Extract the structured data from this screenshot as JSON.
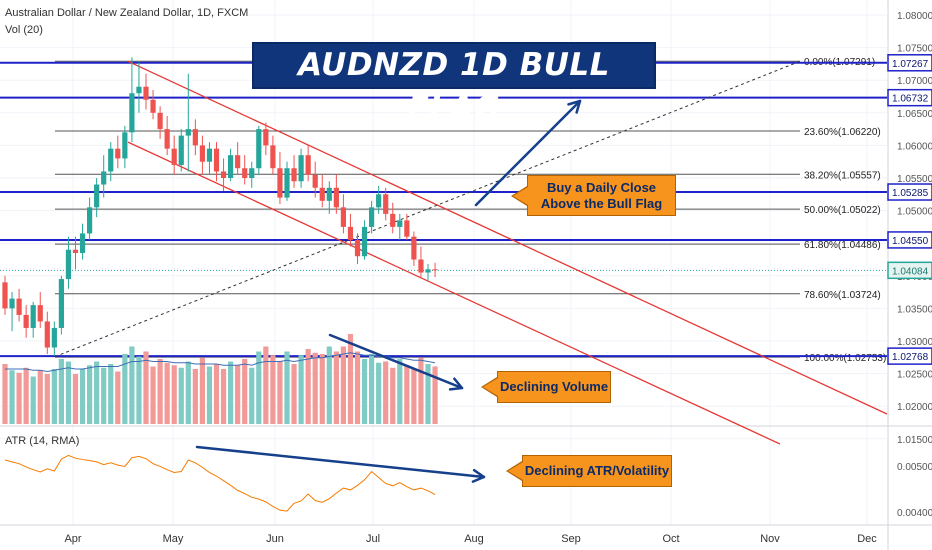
{
  "header": {
    "symbol_line": "Australian Dollar / New Zealand Dollar, 1D, FXCM",
    "vol_label": "Vol (20)",
    "atr_label": "ATR (14, RMA)"
  },
  "banner": {
    "title": "AUDNZD 1D BULL FLAG"
  },
  "callouts": {
    "buy": "Buy a Daily Close Above the Bull Flag",
    "volume": "Declining Volume",
    "atr": "Declining ATR/Volatility"
  },
  "colors": {
    "up": "#26a69a",
    "down": "#ef5350",
    "vol_up": "#80cbc4",
    "vol_down": "#f19a98",
    "channel": "#e53935",
    "level_line": "#1e22c8",
    "fib_line": "#555555",
    "arrow": "#163f8c",
    "atr_line": "#f57c00",
    "last_price_line": "#26a69a"
  },
  "chart_data": [
    {
      "type": "candlestick",
      "title": "Australian Dollar / New Zealand Dollar, 1D, FXCM",
      "x_tick_labels": [
        "Apr",
        "May",
        "Jun",
        "Jul",
        "Aug",
        "Sep",
        "Oct",
        "Nov",
        "Dec"
      ],
      "y_tick_labels": [
        "1.08000",
        "1.07500",
        "1.07000",
        "1.06500",
        "1.06000",
        "1.05500",
        "1.05000",
        "1.04500",
        "1.04000",
        "1.03500",
        "1.03000",
        "1.02500",
        "1.02000",
        "1.01500"
      ],
      "ylim": [
        1.0132,
        1.0815
      ],
      "price_tags": [
        "1.07267",
        "1.06732",
        "1.05285",
        "1.04550",
        "1.04084",
        "1.02768"
      ],
      "horizontal_levels": [
        1.07267,
        1.06732,
        1.05285,
        1.0455,
        1.02768
      ],
      "last_price": 1.04084,
      "fib_levels": [
        {
          "label": "0.00%(1.07291)",
          "value": 1.07291
        },
        {
          "label": "23.60%(1.06220)",
          "value": 1.0622
        },
        {
          "label": "38.20%(1.05557)",
          "value": 1.05557
        },
        {
          "label": "50.00%(1.05022)",
          "value": 1.05022
        },
        {
          "label": "61.80%(1.04486)",
          "value": 1.04486
        },
        {
          "label": "78.60%(1.03724)",
          "value": 1.03724
        },
        {
          "label": "100.00%(1.02753)",
          "value": 1.02753
        }
      ],
      "series": [
        {
          "open": 1.039,
          "high": 1.04,
          "low": 1.034,
          "close": 1.035
        },
        {
          "open": 1.035,
          "high": 1.0375,
          "low": 1.0315,
          "close": 1.0365
        },
        {
          "open": 1.0365,
          "high": 1.038,
          "low": 1.033,
          "close": 1.034
        },
        {
          "open": 1.034,
          "high": 1.0355,
          "low": 1.0305,
          "close": 1.032
        },
        {
          "open": 1.032,
          "high": 1.036,
          "low": 1.0305,
          "close": 1.0355
        },
        {
          "open": 1.0355,
          "high": 1.0375,
          "low": 1.032,
          "close": 1.033
        },
        {
          "open": 1.033,
          "high": 1.0345,
          "low": 1.028,
          "close": 1.029
        },
        {
          "open": 1.029,
          "high": 1.033,
          "low": 1.0277,
          "close": 1.032
        },
        {
          "open": 1.032,
          "high": 1.04,
          "low": 1.031,
          "close": 1.0395
        },
        {
          "open": 1.0395,
          "high": 1.046,
          "low": 1.038,
          "close": 1.044
        },
        {
          "open": 1.044,
          "high": 1.046,
          "low": 1.041,
          "close": 1.0435
        },
        {
          "open": 1.0435,
          "high": 1.048,
          "low": 1.0425,
          "close": 1.0465
        },
        {
          "open": 1.0465,
          "high": 1.052,
          "low": 1.0455,
          "close": 1.0505
        },
        {
          "open": 1.0505,
          "high": 1.055,
          "low": 1.049,
          "close": 1.054
        },
        {
          "open": 1.054,
          "high": 1.0585,
          "low": 1.052,
          "close": 1.056
        },
        {
          "open": 1.056,
          "high": 1.0605,
          "low": 1.0545,
          "close": 1.0595
        },
        {
          "open": 1.0595,
          "high": 1.0615,
          "low": 1.0565,
          "close": 1.058
        },
        {
          "open": 1.058,
          "high": 1.063,
          "low": 1.0565,
          "close": 1.062
        },
        {
          "open": 1.062,
          "high": 1.0735,
          "low": 1.0605,
          "close": 1.068
        },
        {
          "open": 1.068,
          "high": 1.0729,
          "low": 1.065,
          "close": 1.069
        },
        {
          "open": 1.069,
          "high": 1.071,
          "low": 1.0655,
          "close": 1.067
        },
        {
          "open": 1.067,
          "high": 1.0685,
          "low": 1.064,
          "close": 1.065
        },
        {
          "open": 1.065,
          "high": 1.066,
          "low": 1.061,
          "close": 1.0625
        },
        {
          "open": 1.0625,
          "high": 1.0645,
          "low": 1.0585,
          "close": 1.0595
        },
        {
          "open": 1.0595,
          "high": 1.0615,
          "low": 1.0555,
          "close": 1.057
        },
        {
          "open": 1.057,
          "high": 1.0625,
          "low": 1.056,
          "close": 1.0615
        },
        {
          "open": 1.0615,
          "high": 1.071,
          "low": 1.056,
          "close": 1.0625
        },
        {
          "open": 1.0625,
          "high": 1.064,
          "low": 1.0585,
          "close": 1.06
        },
        {
          "open": 1.06,
          "high": 1.0615,
          "low": 1.0555,
          "close": 1.0575
        },
        {
          "open": 1.0575,
          "high": 1.0605,
          "low": 1.0555,
          "close": 1.0595
        },
        {
          "open": 1.0595,
          "high": 1.0605,
          "low": 1.0545,
          "close": 1.056
        },
        {
          "open": 1.056,
          "high": 1.058,
          "low": 1.053,
          "close": 1.055
        },
        {
          "open": 1.055,
          "high": 1.0595,
          "low": 1.0545,
          "close": 1.0585
        },
        {
          "open": 1.0585,
          "high": 1.0605,
          "low": 1.0555,
          "close": 1.0565
        },
        {
          "open": 1.0565,
          "high": 1.0585,
          "low": 1.054,
          "close": 1.055
        },
        {
          "open": 1.055,
          "high": 1.0575,
          "low": 1.0535,
          "close": 1.0565
        },
        {
          "open": 1.0565,
          "high": 1.063,
          "low": 1.0555,
          "close": 1.0625
        },
        {
          "open": 1.0625,
          "high": 1.0635,
          "low": 1.0585,
          "close": 1.06
        },
        {
          "open": 1.06,
          "high": 1.0615,
          "low": 1.0555,
          "close": 1.0565
        },
        {
          "open": 1.0565,
          "high": 1.059,
          "low": 1.051,
          "close": 1.052
        },
        {
          "open": 1.052,
          "high": 1.0575,
          "low": 1.0515,
          "close": 1.0565
        },
        {
          "open": 1.0565,
          "high": 1.0585,
          "low": 1.0535,
          "close": 1.0545
        },
        {
          "open": 1.0545,
          "high": 1.0595,
          "low": 1.0535,
          "close": 1.0585
        },
        {
          "open": 1.0585,
          "high": 1.06,
          "low": 1.0545,
          "close": 1.0555
        },
        {
          "open": 1.0555,
          "high": 1.0575,
          "low": 1.052,
          "close": 1.0535
        },
        {
          "open": 1.0535,
          "high": 1.0555,
          "low": 1.0505,
          "close": 1.0515
        },
        {
          "open": 1.0515,
          "high": 1.0545,
          "low": 1.0495,
          "close": 1.0535
        },
        {
          "open": 1.0535,
          "high": 1.0555,
          "low": 1.0495,
          "close": 1.0505
        },
        {
          "open": 1.0505,
          "high": 1.0525,
          "low": 1.0465,
          "close": 1.0475
        },
        {
          "open": 1.0475,
          "high": 1.0495,
          "low": 1.0445,
          "close": 1.0455
        },
        {
          "open": 1.0455,
          "high": 1.0465,
          "low": 1.0418,
          "close": 1.043
        },
        {
          "open": 1.043,
          "high": 1.0485,
          "low": 1.0425,
          "close": 1.0475
        },
        {
          "open": 1.0475,
          "high": 1.0515,
          "low": 1.0465,
          "close": 1.0505
        },
        {
          "open": 1.0505,
          "high": 1.0538,
          "low": 1.0495,
          "close": 1.0525
        },
        {
          "open": 1.0525,
          "high": 1.0535,
          "low": 1.0485,
          "close": 1.0495
        },
        {
          "open": 1.0495,
          "high": 1.0512,
          "low": 1.0465,
          "close": 1.0475
        },
        {
          "open": 1.0475,
          "high": 1.0495,
          "low": 1.0455,
          "close": 1.0485
        },
        {
          "open": 1.0485,
          "high": 1.0495,
          "low": 1.0455,
          "close": 1.046
        },
        {
          "open": 1.046,
          "high": 1.0468,
          "low": 1.0415,
          "close": 1.0425
        },
        {
          "open": 1.0425,
          "high": 1.0445,
          "low": 1.0398,
          "close": 1.0405
        },
        {
          "open": 1.0405,
          "high": 1.0418,
          "low": 1.0392,
          "close": 1.041
        },
        {
          "open": 1.041,
          "high": 1.042,
          "low": 1.0398,
          "close": 1.04084
        }
      ],
      "annotations": [
        "AUDNZD 1D BULL FLAG",
        "Buy a Daily Close Above the Bull Flag"
      ]
    },
    {
      "type": "bar",
      "title": "Vol (20)",
      "values": [
        48,
        43,
        41,
        45,
        38,
        43,
        40,
        44,
        52,
        50,
        40,
        44,
        47,
        50,
        45,
        48,
        42,
        56,
        62,
        54,
        58,
        46,
        52,
        49,
        47,
        45,
        50,
        44,
        53,
        46,
        48,
        44,
        50,
        47,
        52,
        45,
        58,
        62,
        55,
        50,
        58,
        48,
        55,
        60,
        57,
        56,
        62,
        58,
        62,
        72,
        58,
        52,
        56,
        49,
        50,
        45,
        52,
        47,
        44,
        53,
        48,
        46
      ],
      "ma": [
        44,
        44,
        44,
        44,
        43,
        43,
        42,
        43,
        44,
        45,
        44,
        44,
        45,
        46,
        46,
        46,
        46,
        48,
        50,
        50,
        51,
        50,
        50,
        50,
        49,
        49,
        49,
        48,
        48,
        48,
        48,
        47,
        47,
        47,
        48,
        47,
        49,
        50,
        50,
        50,
        51,
        50,
        51,
        52,
        53,
        53,
        54,
        55,
        56,
        57,
        56,
        55,
        55,
        54,
        54,
        53,
        53,
        52,
        51,
        51,
        50,
        49
      ],
      "annotations": [
        "Declining Volume"
      ]
    },
    {
      "type": "line",
      "title": "ATR (14, RMA)",
      "y_tick_labels": [
        "0.00500",
        "0.00400"
      ],
      "ylim": [
        0.00385,
        0.00572
      ],
      "values": [
        0.00513,
        0.00509,
        0.00505,
        0.00498,
        0.00492,
        0.00487,
        0.00494,
        0.00489,
        0.00515,
        0.00523,
        0.00517,
        0.00514,
        0.00512,
        0.00509,
        0.00503,
        0.00507,
        0.00502,
        0.00499,
        0.00518,
        0.00521,
        0.00516,
        0.00505,
        0.00499,
        0.00492,
        0.00486,
        0.00488,
        0.00513,
        0.00507,
        0.00497,
        0.00486,
        0.00478,
        0.00468,
        0.00458,
        0.00447,
        0.0044,
        0.00432,
        0.00428,
        0.00422,
        0.00412,
        0.00404,
        0.00402,
        0.00419,
        0.00424,
        0.00439,
        0.00425,
        0.00421,
        0.00429,
        0.00441,
        0.00452,
        0.00448,
        0.00458,
        0.0047,
        0.00488,
        0.00475,
        0.00462,
        0.00457,
        0.00464,
        0.00455,
        0.00448,
        0.00452,
        0.00446,
        0.00438
      ],
      "annotations": [
        "Declining ATR/Volatility"
      ]
    }
  ]
}
